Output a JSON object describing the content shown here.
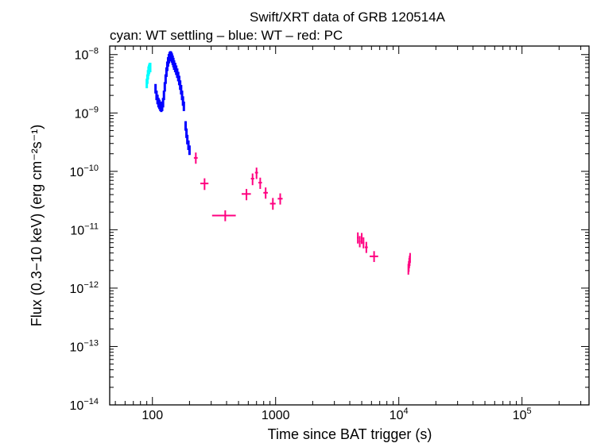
{
  "chart_data": {
    "type": "scatter",
    "title": "Swift/XRT data of GRB 120514A",
    "subtitle": "cyan: WT settling – blue: WT – red: PC",
    "xlabel": "Time since BAT trigger (s)",
    "ylabel": "Flux (0.3−10 keV) (erg cm⁻²s⁻¹)",
    "xscale": "log",
    "yscale": "log",
    "xlim": [
      45,
      350000
    ],
    "ylim": [
      1e-14,
      1.4e-08
    ],
    "x_ticks": [
      {
        "value": 100,
        "label": "100"
      },
      {
        "value": 1000,
        "label": "1000"
      },
      {
        "value": 10000,
        "base": "10",
        "exp": "4"
      },
      {
        "value": 100000,
        "base": "10",
        "exp": "5"
      }
    ],
    "y_ticks": [
      {
        "value": 1e-08,
        "base": "10",
        "exp": "−8"
      },
      {
        "value": 1e-09,
        "base": "10",
        "exp": "−9"
      },
      {
        "value": 1e-10,
        "base": "10",
        "exp": "−10"
      },
      {
        "value": 1e-11,
        "base": "10",
        "exp": "−11"
      },
      {
        "value": 1e-12,
        "base": "10",
        "exp": "−12"
      },
      {
        "value": 1e-13,
        "base": "10",
        "exp": "−13"
      },
      {
        "value": 1e-14,
        "base": "10",
        "exp": "−14"
      }
    ],
    "series": [
      {
        "name": "WT settling",
        "color": "#00ffff",
        "points": [
          [
            90,
            3.2e-09
          ],
          [
            91,
            3.8e-09
          ],
          [
            92,
            4.5e-09
          ],
          [
            93,
            5.2e-09
          ],
          [
            94,
            5.6e-09
          ],
          [
            95,
            6e-09
          ],
          [
            96,
            6e-09
          ]
        ]
      },
      {
        "name": "WT",
        "color": "#0000ff",
        "points": [
          [
            106,
            2.6e-09
          ],
          [
            108,
            2e-09
          ],
          [
            110,
            1.7e-09
          ],
          [
            112,
            1.5e-09
          ],
          [
            114,
            1.4e-09
          ],
          [
            116,
            1.3e-09
          ],
          [
            118,
            1.25e-09
          ],
          [
            120,
            1.3e-09
          ],
          [
            122,
            1.5e-09
          ],
          [
            124,
            2e-09
          ],
          [
            126,
            2.8e-09
          ],
          [
            128,
            3.8e-09
          ],
          [
            130,
            5e-09
          ],
          [
            132,
            6.3e-09
          ],
          [
            134,
            7.5e-09
          ],
          [
            136,
            8.5e-09
          ],
          [
            138,
            9.2e-09
          ],
          [
            140,
            9.5e-09
          ],
          [
            142,
            9.3e-09
          ],
          [
            144,
            8.7e-09
          ],
          [
            146,
            8e-09
          ],
          [
            148,
            7.3e-09
          ],
          [
            150,
            6.6e-09
          ],
          [
            153,
            6e-09
          ],
          [
            156,
            5.4e-09
          ],
          [
            159,
            4.8e-09
          ],
          [
            162,
            4.2e-09
          ],
          [
            165,
            3.6e-09
          ],
          [
            168,
            3e-09
          ],
          [
            171,
            2.5e-09
          ],
          [
            174,
            2e-09
          ],
          [
            177,
            1.6e-09
          ],
          [
            180,
            1.3e-09
          ],
          [
            186,
            6e-10
          ],
          [
            189,
            4.5e-10
          ],
          [
            192,
            3.5e-10
          ],
          [
            196,
            2.8e-10
          ],
          [
            200,
            2.3e-10
          ]
        ]
      },
      {
        "name": "PC",
        "color": "#ff0080",
        "points": [
          {
            "x": 225,
            "y": 1.7e-10,
            "xlo": 217,
            "xhi": 233,
            "ylo": 1.35e-10,
            "yhi": 2.1e-10
          },
          {
            "x": 265,
            "y": 6.2e-11,
            "xlo": 245,
            "xhi": 285,
            "ylo": 4.8e-11,
            "yhi": 7.6e-11
          },
          {
            "x": 390,
            "y": 1.75e-11,
            "xlo": 305,
            "xhi": 475,
            "ylo": 1.4e-11,
            "yhi": 2.15e-11
          },
          {
            "x": 580,
            "y": 4.1e-11,
            "xlo": 530,
            "xhi": 630,
            "ylo": 3.2e-11,
            "yhi": 5e-11
          },
          {
            "x": 650,
            "y": 7.5e-11,
            "xlo": 630,
            "xhi": 670,
            "ylo": 5.8e-11,
            "yhi": 9.2e-11
          },
          {
            "x": 700,
            "y": 9.5e-11,
            "xlo": 680,
            "xhi": 720,
            "ylo": 7.4e-11,
            "yhi": 1.16e-10
          },
          {
            "x": 750,
            "y": 6.4e-11,
            "xlo": 725,
            "xhi": 775,
            "ylo": 5e-11,
            "yhi": 7.8e-11
          },
          {
            "x": 830,
            "y": 4.3e-11,
            "xlo": 795,
            "xhi": 865,
            "ylo": 3.4e-11,
            "yhi": 5.3e-11
          },
          {
            "x": 950,
            "y": 2.8e-11,
            "xlo": 900,
            "xhi": 1000,
            "ylo": 2.2e-11,
            "yhi": 3.5e-11
          },
          {
            "x": 1090,
            "y": 3.4e-11,
            "xlo": 1040,
            "xhi": 1140,
            "ylo": 2.7e-11,
            "yhi": 4.2e-11
          },
          {
            "x": 4650,
            "y": 7.3e-12,
            "xlo": 4580,
            "xhi": 4720,
            "ylo": 5.8e-12,
            "yhi": 9e-12
          },
          {
            "x": 4820,
            "y": 6.3e-12,
            "xlo": 4740,
            "xhi": 4900,
            "ylo": 5e-12,
            "yhi": 7.8e-12
          },
          {
            "x": 5000,
            "y": 7.2e-12,
            "xlo": 4920,
            "xhi": 5080,
            "ylo": 5.7e-12,
            "yhi": 8.8e-12
          },
          {
            "x": 5170,
            "y": 6e-12,
            "xlo": 5090,
            "xhi": 5250,
            "ylo": 4.8e-12,
            "yhi": 7.4e-12
          },
          {
            "x": 5450,
            "y": 5e-12,
            "xlo": 5300,
            "xhi": 5600,
            "ylo": 4e-12,
            "yhi": 6.2e-12
          },
          {
            "x": 6300,
            "y": 3.5e-12,
            "xlo": 5800,
            "xhi": 6800,
            "ylo": 2.8e-12,
            "yhi": 4.3e-12
          },
          {
            "x": 11950,
            "y": 2.1e-12,
            "xlo": 11900,
            "xhi": 12000,
            "ylo": 1.7e-12,
            "yhi": 2.6e-12
          },
          {
            "x": 12050,
            "y": 2.4e-12,
            "xlo": 12000,
            "xhi": 12100,
            "ylo": 1.9e-12,
            "yhi": 2.9e-12
          },
          {
            "x": 12150,
            "y": 2.7e-12,
            "xlo": 12100,
            "xhi": 12200,
            "ylo": 2.2e-12,
            "yhi": 3.3e-12
          },
          {
            "x": 12250,
            "y": 3e-12,
            "xlo": 12200,
            "xhi": 12300,
            "ylo": 2.4e-12,
            "yhi": 3.6e-12
          },
          {
            "x": 12350,
            "y": 3.3e-12,
            "xlo": 12300,
            "xhi": 12400,
            "ylo": 2.7e-12,
            "yhi": 4e-12
          }
        ]
      }
    ]
  }
}
